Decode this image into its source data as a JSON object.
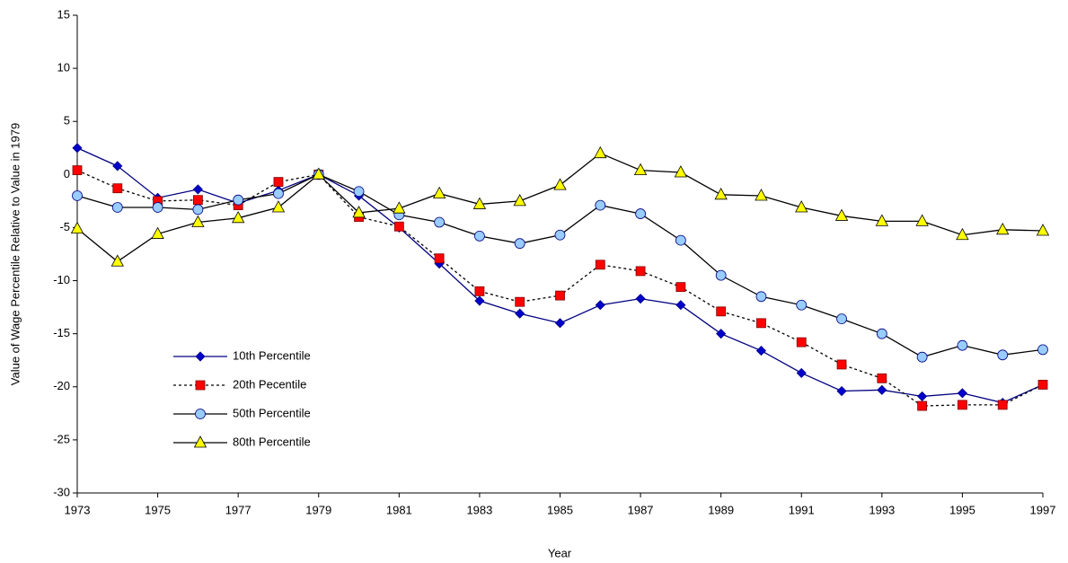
{
  "chart_data": {
    "type": "line",
    "x_label": "Year",
    "y_label": "Value of Wage Percentile Relative to Value in 1979",
    "x": [
      1973,
      1974,
      1975,
      1976,
      1977,
      1978,
      1979,
      1980,
      1981,
      1982,
      1983,
      1984,
      1985,
      1986,
      1987,
      1988,
      1989,
      1990,
      1991,
      1992,
      1993,
      1994,
      1995,
      1996,
      1997
    ],
    "series": [
      {
        "name": "10th Percentile",
        "color": "#000080",
        "marker_color": "#0000cc",
        "marker": "diamond",
        "dash": "solid",
        "values": [
          2.5,
          0.8,
          -2.2,
          -1.4,
          -2.7,
          -1.5,
          0,
          -2.0,
          -5.0,
          -8.4,
          -11.9,
          -13.1,
          -14.0,
          -12.3,
          -11.7,
          -12.3,
          -15.0,
          -16.6,
          -18.7,
          -20.4,
          -20.3,
          -20.9,
          -20.6,
          -21.5,
          -19.8
        ]
      },
      {
        "name": "20th Pecentile",
        "color": "#000000",
        "marker_color": "#ff0000",
        "marker": "square",
        "dash": "dotted",
        "values": [
          0.4,
          -1.3,
          -2.5,
          -2.4,
          -2.9,
          -0.7,
          0,
          -4.0,
          -4.9,
          -7.9,
          -11.0,
          -12.0,
          -11.4,
          -8.5,
          -9.1,
          -10.6,
          -12.9,
          -14.0,
          -15.8,
          -17.9,
          -19.2,
          -21.8,
          -21.7,
          -21.7,
          -19.8
        ]
      },
      {
        "name": "50th Percentile",
        "color": "#000000",
        "marker_color": "#99ccff",
        "marker": "circle",
        "dash": "solid",
        "values": [
          -2.0,
          -3.1,
          -3.1,
          -3.3,
          -2.4,
          -1.8,
          0,
          -1.6,
          -3.8,
          -4.5,
          -5.8,
          -6.5,
          -5.7,
          -2.9,
          -3.7,
          -6.2,
          -9.5,
          -11.5,
          -12.3,
          -13.6,
          -15.0,
          -17.2,
          -16.1,
          -17.0,
          -16.5
        ]
      },
      {
        "name": "80th Percentile",
        "color": "#000000",
        "marker_color": "#ffff00",
        "marker": "triangle",
        "dash": "solid",
        "values": [
          -5.1,
          -8.2,
          -5.6,
          -4.5,
          -4.1,
          -3.1,
          0,
          -3.6,
          -3.2,
          -1.8,
          -2.8,
          -2.5,
          -1.0,
          2.0,
          0.4,
          0.2,
          -1.9,
          -2.0,
          -3.1,
          -3.9,
          -4.4,
          -4.4,
          -5.7,
          -5.2,
          -5.3
        ]
      }
    ],
    "xlim": [
      1973,
      1997
    ],
    "xticks": [
      1973,
      1975,
      1977,
      1979,
      1981,
      1983,
      1985,
      1987,
      1989,
      1991,
      1993,
      1995,
      1997
    ],
    "ylim": [
      -30,
      15
    ],
    "yticks": [
      -30,
      -25,
      -20,
      -15,
      -10,
      -5,
      0,
      5,
      10,
      15
    ],
    "grid": false,
    "legend": "lower-left"
  }
}
